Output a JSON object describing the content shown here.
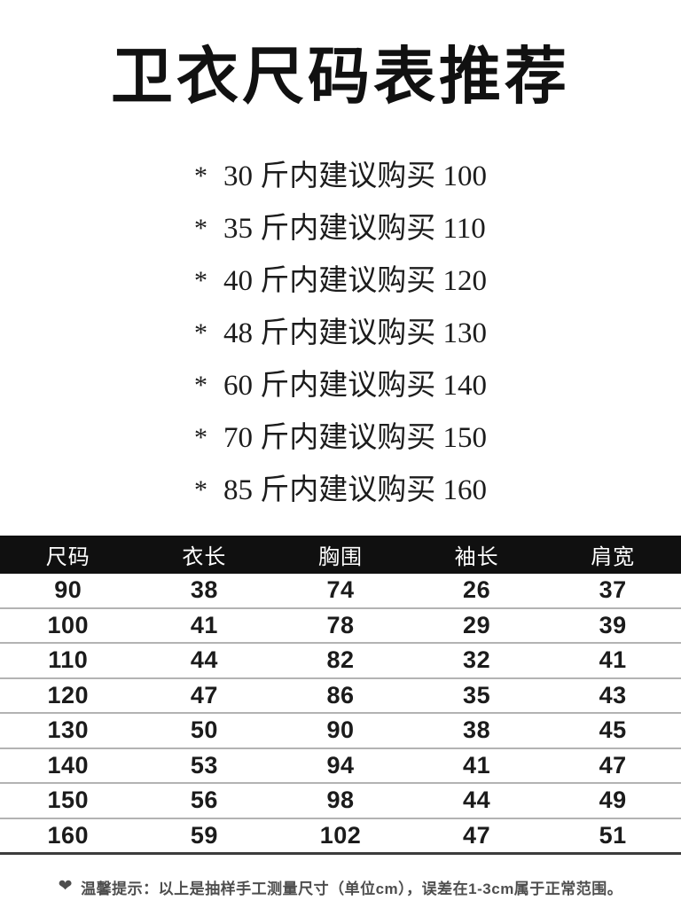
{
  "title": "卫衣尺码表推荐",
  "recommendations": {
    "bullet": "*",
    "items": [
      "30 斤内建议购买 100",
      "35 斤内建议购买 110",
      "40 斤内建议购买 120",
      "48 斤内建议购买 130",
      "60 斤内建议购买 140",
      "70 斤内建议购买 150",
      "85 斤内建议购买 160"
    ]
  },
  "size_table": {
    "headers": [
      "尺码",
      "衣长",
      "胸围",
      "袖长",
      "肩宽"
    ],
    "rows": [
      [
        "90",
        "38",
        "74",
        "26",
        "37"
      ],
      [
        "100",
        "41",
        "78",
        "29",
        "39"
      ],
      [
        "110",
        "44",
        "82",
        "32",
        "41"
      ],
      [
        "120",
        "47",
        "86",
        "35",
        "43"
      ],
      [
        "130",
        "50",
        "90",
        "38",
        "45"
      ],
      [
        "140",
        "53",
        "94",
        "41",
        "47"
      ],
      [
        "150",
        "56",
        "98",
        "44",
        "49"
      ],
      [
        "160",
        "59",
        "102",
        "47",
        "51"
      ]
    ]
  },
  "footer": {
    "heart_icon": "❤",
    "text": "温馨提示：以上是抽样手工测量尺寸（单位cm），误差在1-3cm属于正常范围。"
  },
  "colors": {
    "page_bg": "#ffffff",
    "text": "#161616",
    "table_header_bg": "#101010",
    "table_header_text": "#ffffff",
    "row_divider": "#b3b3b3",
    "table_bottom_border": "#3c3c3c",
    "footer_text": "#4e4e4e"
  }
}
